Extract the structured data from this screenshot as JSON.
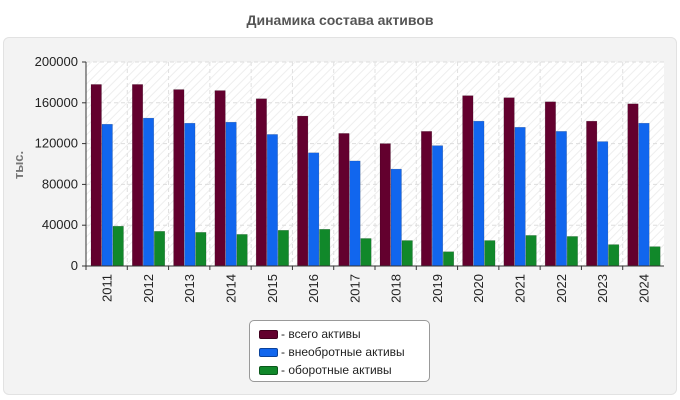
{
  "title": "Динамика состава активов",
  "chart_data": {
    "type": "bar",
    "categories": [
      "2011",
      "2012",
      "2013",
      "2014",
      "2015",
      "2016",
      "2017",
      "2018",
      "2019",
      "2020",
      "2021",
      "2022",
      "2023",
      "2024"
    ],
    "series": [
      {
        "name": "- всего активы",
        "color": "#63002e",
        "values": [
          178000,
          178000,
          173000,
          172000,
          164000,
          147000,
          130000,
          120000,
          132000,
          167000,
          165000,
          161000,
          142000,
          159000
        ]
      },
      {
        "name": "- внеобротные активы",
        "color": "#1166ee",
        "values": [
          139000,
          145000,
          140000,
          141000,
          129000,
          111000,
          103000,
          95000,
          118000,
          142000,
          136000,
          132000,
          122000,
          140000
        ]
      },
      {
        "name": "- оборотные активы",
        "color": "#11882a",
        "values": [
          39000,
          34000,
          33000,
          31000,
          35000,
          36000,
          27000,
          25000,
          14000,
          25000,
          30000,
          29000,
          21000,
          19000
        ]
      }
    ],
    "yticks": [
      "0",
      "40000",
      "80000",
      "120000",
      "160000",
      "200000"
    ],
    "ylim": [
      0,
      200000
    ],
    "ylabel": "тыс.",
    "xlabel": "",
    "grid": true,
    "legend_position": "bottom"
  }
}
